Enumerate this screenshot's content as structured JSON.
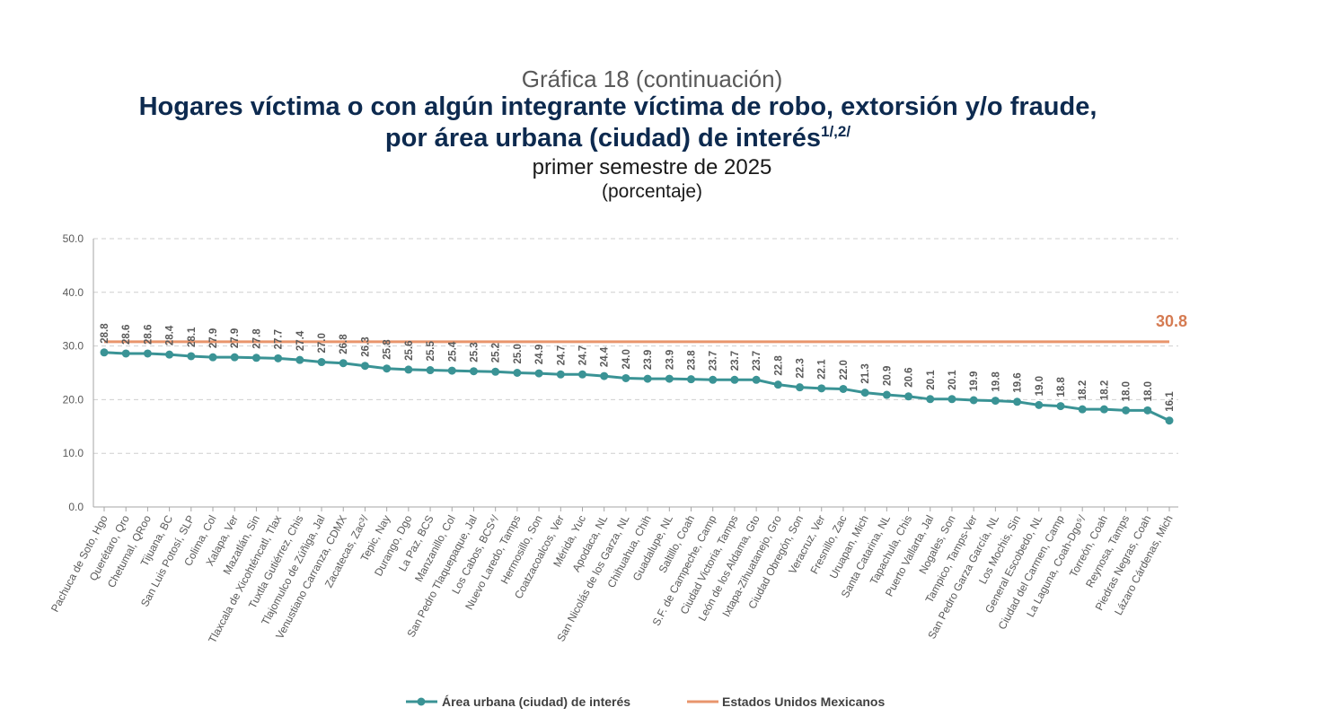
{
  "header": {
    "kicker": "Gráfica 18 (continuación)",
    "title_line1": "Hogares víctima o con algún integrante víctima de robo, extorsión y/o fraude,",
    "title_line2": "por área urbana (ciudad) de interés",
    "title_note": "1/,2/",
    "subtitle_line1": "primer semestre de 2025",
    "subtitle_line2": "(porcentaje)"
  },
  "chart_data": {
    "type": "line",
    "categories": [
      "Pachuca de Soto, Hgo",
      "Querétaro, Qro",
      "Chetumal, QRoo",
      "Tijuana, BC",
      "San Luis Potosí, SLP",
      "Colima, Col",
      "Xalapa, Ver",
      "Mazatlán, Sin",
      "Tlaxcala de Xicohténcatl, Tlax",
      "Tuxtla Gutiérrez, Chis",
      "Tlajomulco de Zúñiga, Jal",
      "Venustiano Carranza, CDMX",
      "Zacatecas, Zac³/",
      "Tepic, Nay",
      "Durango, Dgo",
      "La Paz, BCS",
      "Manzanillo, Col",
      "San Pedro Tlaquepaque, Jal",
      "Los Cabos, BCS⁴/",
      "Nuevo Laredo, Tamps",
      "Hermosillo, Son",
      "Coatzacoalcos, Ver",
      "Mérida, Yuc",
      "Apodaca, NL",
      "San Nicolás de los Garza, NL",
      "Chihuahua, Chih",
      "Guadalupe, NL",
      "Saltillo, Coah",
      "S.F. de Campeche, Camp",
      "Ciudad Victoria, Tamps",
      "León de los Aldama, Gto",
      "Ixtapa-Zihuatanejo, Gro",
      "Ciudad Obregón, Son",
      "Veracruz, Ver",
      "Fresnillo, Zac",
      "Uruapan, Mich",
      "Santa Catarina, NL",
      "Tapachula, Chis",
      "Puerto Vallarta, Jal",
      "Nogales, Son",
      "Tampico, Tamps-Ver",
      "San Pedro Garza García, NL",
      "Los Mochis, Sin",
      "General Escobedo, NL",
      "Ciudad del Carmen, Camp",
      "La Laguna, Coah-Dgo⁵/",
      "Torreón, Coah",
      "Reynosa, Tamps",
      "Piedras Negras, Coah",
      "Lázaro Cárdenas, Mich"
    ],
    "series": [
      {
        "name": "Área urbana (ciudad) de interés",
        "color": "#3a9395",
        "values": [
          28.8,
          28.6,
          28.6,
          28.4,
          28.1,
          27.9,
          27.9,
          27.8,
          27.7,
          27.4,
          27.0,
          26.8,
          26.3,
          25.8,
          25.6,
          25.5,
          25.4,
          25.3,
          25.2,
          25.0,
          24.9,
          24.7,
          24.7,
          24.4,
          24.0,
          23.9,
          23.9,
          23.8,
          23.7,
          23.7,
          23.7,
          22.8,
          22.3,
          22.1,
          22.0,
          21.3,
          20.9,
          20.6,
          20.1,
          20.1,
          19.9,
          19.8,
          19.6,
          19.0,
          18.8,
          18.2,
          18.2,
          18.0,
          18.0,
          16.1
        ],
        "data_labels": [
          "28.8",
          "28.6",
          "28.6",
          "28.4",
          "28.1",
          "27.9",
          "27.9",
          "27.8",
          "27.7",
          "27.4",
          "27.0",
          "26.8",
          "26.3",
          "25.8",
          "25.6",
          "25.5",
          "25.4",
          "25.3",
          "25.2",
          "25.0",
          "24.9",
          "24.7",
          "24.7",
          "24.4",
          "24.0",
          "23.9",
          "23.9",
          "23.8",
          "23.7",
          "23.7",
          "23.7",
          "22.8",
          "22.3",
          "22.1",
          "22.0",
          "21.3",
          "20.9",
          "20.6",
          "20.1",
          "20.1",
          "19.9",
          "19.8",
          "19.6",
          "19.0",
          "18.8",
          "18.2",
          "18.2",
          "18.0",
          "18.0",
          "16.1"
        ]
      },
      {
        "name": "Estados Unidos Mexicanos",
        "color": "#e8956c",
        "value": 30.8,
        "value_label": "30.8",
        "label_color": "#d57b52"
      }
    ],
    "yticks": [
      "0.0",
      "10.0",
      "20.0",
      "30.0",
      "40.0",
      "50.0"
    ],
    "ylim": [
      0,
      50
    ],
    "grid": true,
    "legend_position": "bottom-center"
  }
}
